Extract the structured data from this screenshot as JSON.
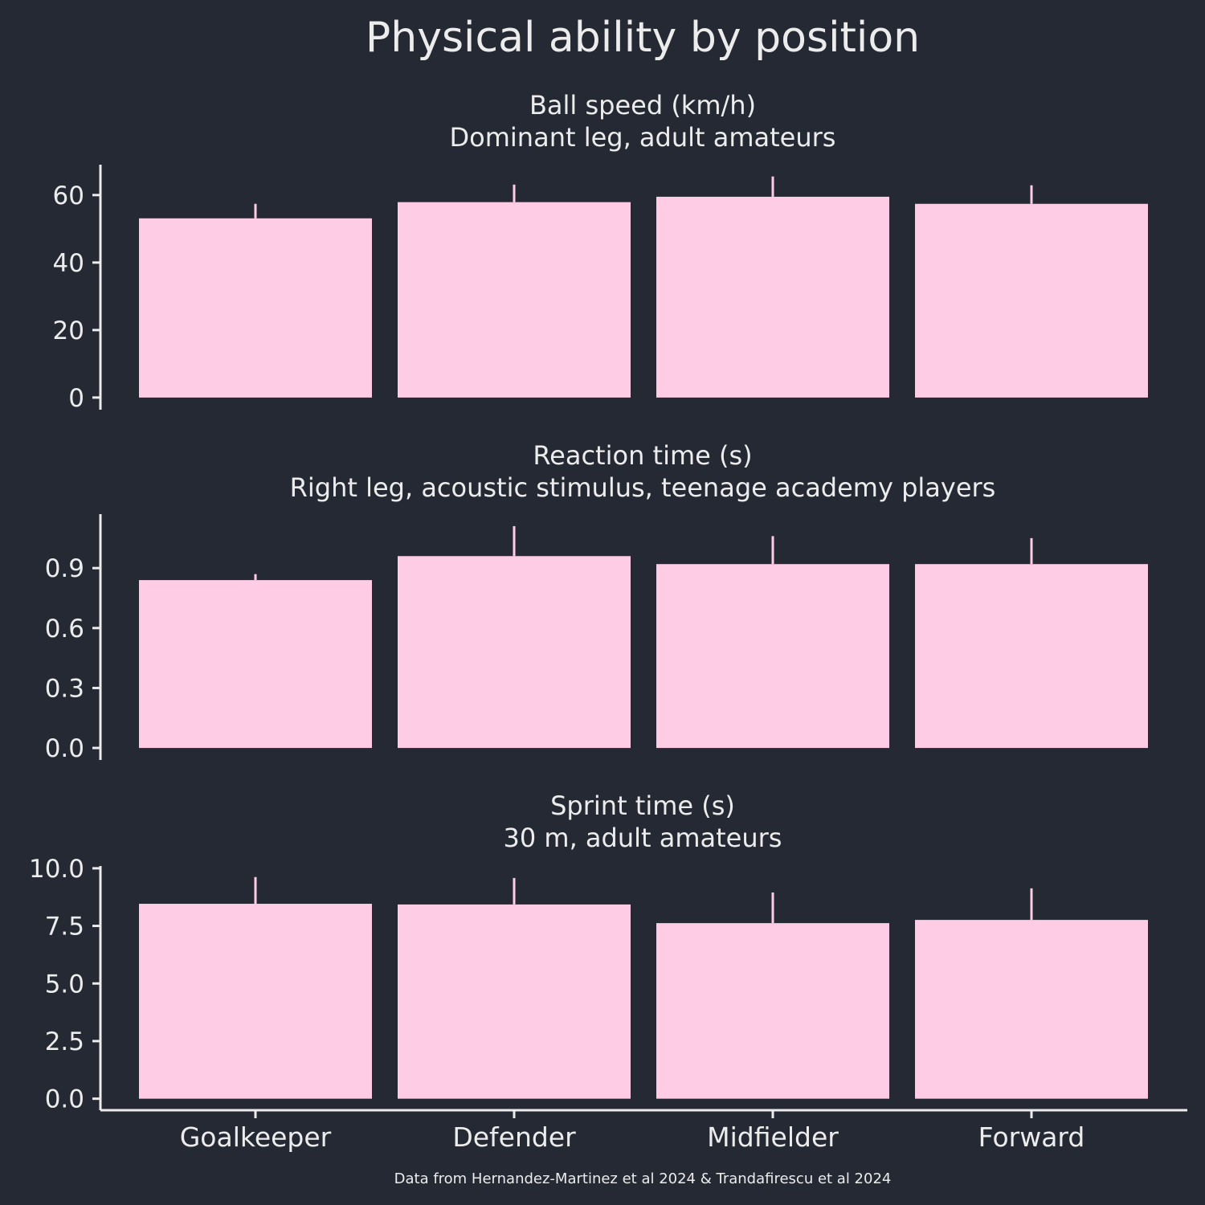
{
  "title": "Physical ability by position",
  "footer": "Data from Hernandez-Martinez et al 2024 & Trandafirescu et al 2024",
  "colors": {
    "background": "#252934",
    "bar": "#ffcce6",
    "text": "#ececec",
    "axis": "#ececec"
  },
  "chart_data": [
    {
      "type": "bar",
      "title": "Ball speed (km/h)",
      "subtitle": "Dominant leg, adult amateurs",
      "categories": [
        "Goalkeeper",
        "Defender",
        "Midfielder",
        "Forward"
      ],
      "values": [
        53.1,
        57.9,
        59.5,
        57.4
      ],
      "error_upper": [
        57.4,
        63.1,
        65.5,
        62.9
      ],
      "ylim": [
        -3.6,
        69
      ],
      "yticks": [
        0,
        20,
        40,
        60
      ],
      "ytick_labels": [
        "0",
        "20",
        "40",
        "60"
      ],
      "grid": false
    },
    {
      "type": "bar",
      "title": "Reaction time (s)",
      "subtitle": "Right leg, acoustic stimulus, teenage academy players",
      "categories": [
        "Goalkeeper",
        "Defender",
        "Midfielder",
        "Forward"
      ],
      "values": [
        0.84,
        0.96,
        0.92,
        0.92
      ],
      "error_upper": [
        0.87,
        1.11,
        1.06,
        1.05
      ],
      "ylim": [
        -0.06,
        1.17
      ],
      "yticks": [
        0,
        0.3,
        0.6,
        0.9
      ],
      "ytick_labels": [
        "0.0",
        "0.3",
        "0.6",
        "0.9"
      ],
      "grid": false
    },
    {
      "type": "bar",
      "title": "Sprint time (s)",
      "subtitle": "30 m, adult amateurs",
      "categories": [
        "Goalkeeper",
        "Defender",
        "Midfielder",
        "Forward"
      ],
      "values": [
        8.46,
        8.43,
        7.62,
        7.76
      ],
      "error_upper": [
        9.62,
        9.58,
        8.95,
        9.13
      ],
      "ylim": [
        -0.5,
        10.1
      ],
      "yticks": [
        0,
        2.5,
        5,
        7.5,
        10
      ],
      "ytick_labels": [
        "0.0",
        "2.5",
        "5.0",
        "7.5",
        "10.0"
      ],
      "grid": false
    }
  ]
}
